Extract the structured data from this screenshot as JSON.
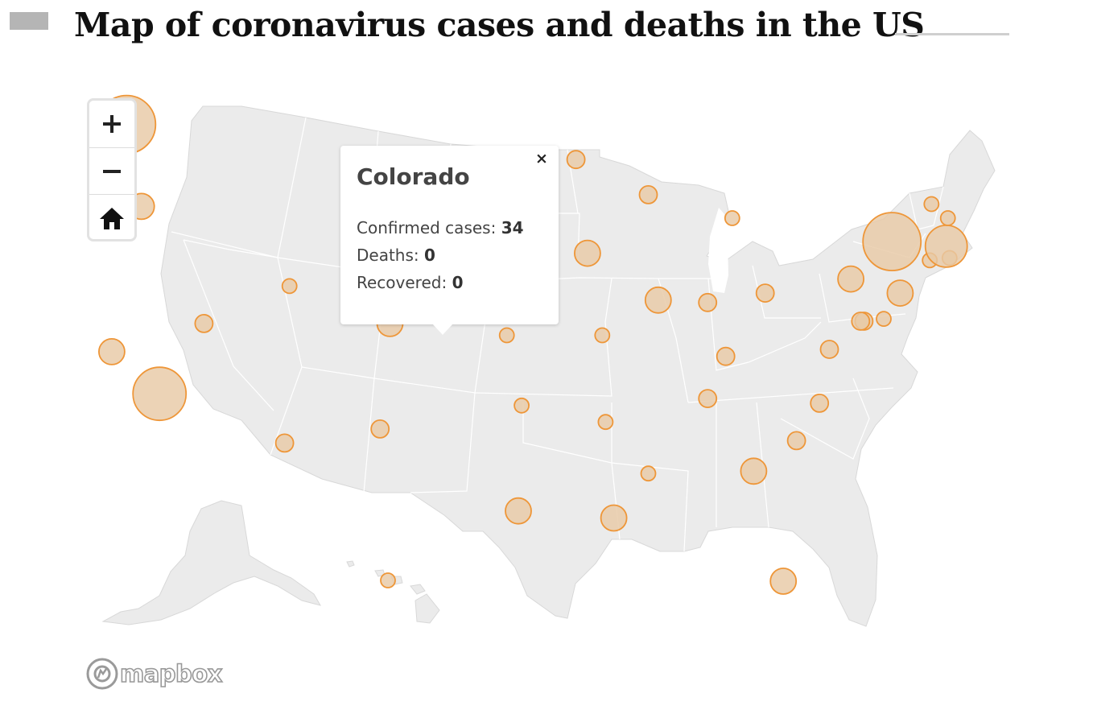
{
  "page": {
    "title": "Map of coronavirus cases and deaths in the US"
  },
  "map": {
    "land_color": "#ebebeb",
    "border_color": "#ffffff",
    "bubble_fill": "#e8c9a6",
    "bubble_stroke": "#ee9638",
    "controls": {
      "zoom_in_icon": "plus-icon",
      "zoom_out_icon": "minus-icon",
      "reset_icon": "home-icon"
    },
    "attribution": {
      "text": "mapbox",
      "icon": "mapbox-logo-icon"
    },
    "popup": {
      "state": "Colorado",
      "close_symbol": "×",
      "cases_label": "Confirmed cases:",
      "cases_value": "34",
      "deaths_label": "Deaths:",
      "deaths_value": "0",
      "recovered_label": "Recovered:",
      "recovered_value": "0"
    },
    "markers": [
      {
        "name": "Washington",
        "lon": -121.5,
        "lat": 47.5,
        "size": "xl"
      },
      {
        "name": "Oregon",
        "lon": -120.6,
        "lat": 44.0,
        "size": "s"
      },
      {
        "name": "California north",
        "lon": -122.4,
        "lat": 37.8,
        "size": "s"
      },
      {
        "name": "California",
        "lon": -119.5,
        "lat": 36.0,
        "size": "l"
      },
      {
        "name": "Nevada",
        "lon": -116.8,
        "lat": 39.0,
        "size": "xs"
      },
      {
        "name": "Arizona",
        "lon": -111.9,
        "lat": 33.9,
        "size": "xs"
      },
      {
        "name": "New Mexico",
        "lon": -106.1,
        "lat": 34.5,
        "size": "xs"
      },
      {
        "name": "Colorado",
        "lon": -105.5,
        "lat": 39.0,
        "size": "s"
      },
      {
        "name": "Kansas",
        "lon": -98.4,
        "lat": 38.5,
        "size": "xxs"
      },
      {
        "name": "Oklahoma",
        "lon": -97.5,
        "lat": 35.5,
        "size": "xxs"
      },
      {
        "name": "Texas",
        "lon": -97.7,
        "lat": 31.0,
        "size": "s"
      },
      {
        "name": "Minnesota",
        "lon": -94.2,
        "lat": 46.0,
        "size": "xs"
      },
      {
        "name": "Iowa",
        "lon": -93.5,
        "lat": 42.0,
        "size": "s"
      },
      {
        "name": "Missouri",
        "lon": -92.6,
        "lat": 38.5,
        "size": "xxs"
      },
      {
        "name": "Arkansas",
        "lon": -92.4,
        "lat": 34.8,
        "size": "xxs"
      },
      {
        "name": "Louisiana",
        "lon": -91.9,
        "lat": 30.7,
        "size": "s"
      },
      {
        "name": "Mississippi",
        "lon": -89.8,
        "lat": 32.6,
        "size": "xxs"
      },
      {
        "name": "Wisconsin",
        "lon": -89.8,
        "lat": 44.5,
        "size": "xs"
      },
      {
        "name": "Illinois",
        "lon": -89.2,
        "lat": 40.0,
        "size": "s"
      },
      {
        "name": "Indiana",
        "lon": -86.2,
        "lat": 39.9,
        "size": "xs"
      },
      {
        "name": "Michigan",
        "lon": -84.7,
        "lat": 43.5,
        "size": "xxs"
      },
      {
        "name": "Kentucky",
        "lon": -85.1,
        "lat": 37.6,
        "size": "xs"
      },
      {
        "name": "Tennessee",
        "lon": -86.2,
        "lat": 35.8,
        "size": "xs"
      },
      {
        "name": "Ohio",
        "lon": -82.7,
        "lat": 40.3,
        "size": "xs"
      },
      {
        "name": "Georgia",
        "lon": -83.4,
        "lat": 32.7,
        "size": "s"
      },
      {
        "name": "South Carolina",
        "lon": -80.8,
        "lat": 34.0,
        "size": "xs"
      },
      {
        "name": "North Carolina",
        "lon": -79.4,
        "lat": 35.6,
        "size": "xs"
      },
      {
        "name": "Florida",
        "lon": -81.6,
        "lat": 28.0,
        "size": "s"
      },
      {
        "name": "Virginia",
        "lon": -78.8,
        "lat": 37.9,
        "size": "xs"
      },
      {
        "name": "West Virginia",
        "lon": -76.7,
        "lat": 39.1,
        "size": "xs"
      },
      {
        "name": "Maryland",
        "lon": -76.9,
        "lat": 39.1,
        "size": "xs"
      },
      {
        "name": "Delaware",
        "lon": -75.5,
        "lat": 39.2,
        "size": "xxs"
      },
      {
        "name": "Pennsylvania",
        "lon": -77.5,
        "lat": 40.9,
        "size": "s"
      },
      {
        "name": "New Jersey",
        "lon": -74.5,
        "lat": 40.3,
        "size": "s"
      },
      {
        "name": "New York",
        "lon": -75.0,
        "lat": 42.5,
        "size": "xl"
      },
      {
        "name": "Connecticut",
        "lon": -72.7,
        "lat": 41.7,
        "size": "xxs"
      },
      {
        "name": "Rhode Island",
        "lon": -71.5,
        "lat": 41.8,
        "size": "xxs"
      },
      {
        "name": "Massachusetts",
        "lon": -71.7,
        "lat": 42.3,
        "size": "m"
      },
      {
        "name": "Vermont",
        "lon": -72.6,
        "lat": 44.1,
        "size": "xxs"
      },
      {
        "name": "New Hampshire",
        "lon": -71.6,
        "lat": 43.5,
        "size": "xxs"
      },
      {
        "name": "Utah",
        "lon": -111.6,
        "lat": 40.6,
        "size": "xxs"
      },
      {
        "name": "Nebraska",
        "lon": -96.2,
        "lat": 40.9,
        "size": "xxs"
      },
      {
        "name": "Hawaii",
        "lon": -157.9,
        "lat": 21.3,
        "size": "xxs"
      }
    ]
  }
}
